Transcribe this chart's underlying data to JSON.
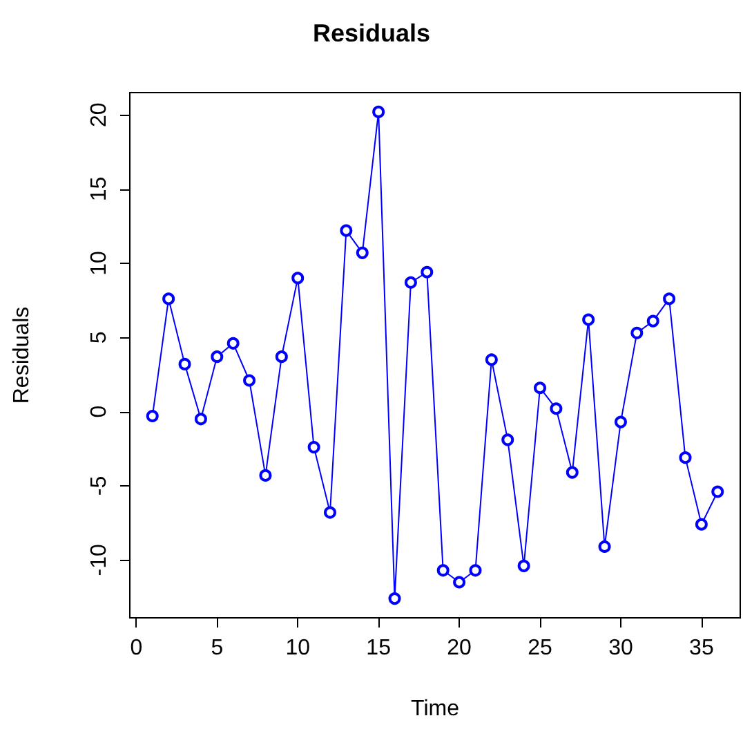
{
  "chart_data": {
    "type": "line",
    "title": "Residuals",
    "xlabel": "Time",
    "ylabel": "Residuals",
    "x": [
      1,
      2,
      3,
      4,
      5,
      6,
      7,
      8,
      9,
      10,
      11,
      12,
      13,
      14,
      15,
      16,
      17,
      18,
      19,
      20,
      21,
      22,
      23,
      24,
      25,
      26,
      27,
      28,
      29,
      30,
      31,
      32,
      33,
      34,
      35,
      36
    ],
    "series": [
      {
        "color": "#0000ff",
        "values": [
          -0.3,
          7.6,
          3.2,
          -0.5,
          3.7,
          4.6,
          2.1,
          -4.3,
          3.7,
          9.0,
          -2.4,
          -6.8,
          12.2,
          10.7,
          20.2,
          -12.6,
          8.7,
          9.4,
          -10.7,
          -11.5,
          -10.7,
          3.5,
          -1.9,
          -10.4,
          1.6,
          0.2,
          -4.1,
          6.2,
          -9.1,
          -0.7,
          5.3,
          6.1,
          7.6,
          -3.1,
          -7.6,
          -5.4
        ]
      }
    ],
    "xlim": [
      -0.4,
      37.4
    ],
    "ylim": [
      -13.9,
      21.5
    ],
    "xticks": [
      0,
      5,
      10,
      15,
      20,
      25,
      30,
      35
    ],
    "yticks": [
      -10,
      -5,
      0,
      5,
      10,
      15,
      20
    ],
    "marker": "circle",
    "line_style": "solid"
  }
}
